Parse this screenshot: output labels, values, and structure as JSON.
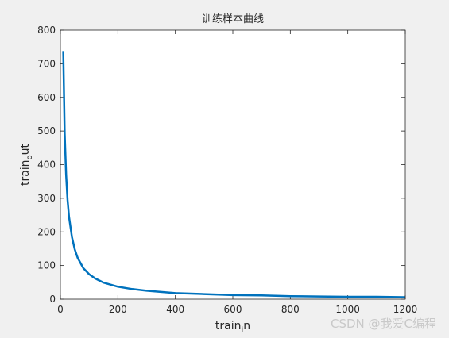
{
  "chart_data": {
    "type": "line",
    "title": "训练样本曲线",
    "xlabel": "train_i n",
    "xlabel_main": "train",
    "xlabel_sub": "i",
    "xlabel_tail": "n",
    "ylabel_main": "train",
    "ylabel_sub": "o",
    "ylabel_tail": "ut",
    "xlim": [
      0,
      1200
    ],
    "ylim": [
      0,
      800
    ],
    "xticks": [
      0,
      200,
      400,
      600,
      800,
      1000,
      1200
    ],
    "yticks": [
      0,
      100,
      200,
      300,
      400,
      500,
      600,
      700,
      800
    ],
    "grid": false,
    "line_color": "#0072bd",
    "series": [
      {
        "x": [
          10,
          15,
          20,
          25,
          30,
          40,
          50,
          60,
          80,
          100,
          120,
          150,
          200,
          250,
          300,
          400,
          500,
          600,
          700,
          800,
          900,
          1000,
          1100,
          1200
        ],
        "y": [
          738,
          492,
          369,
          295,
          246,
          185,
          148,
          123,
          92,
          74,
          62,
          49,
          37,
          30,
          25,
          18,
          15,
          12,
          11,
          9,
          8,
          7,
          7,
          6
        ]
      }
    ]
  },
  "watermark": "CSDN @我爱C编程",
  "colors": {
    "figure_bg": "#f0f0f0",
    "axes_bg": "#ffffff",
    "axis_color": "#262626"
  }
}
